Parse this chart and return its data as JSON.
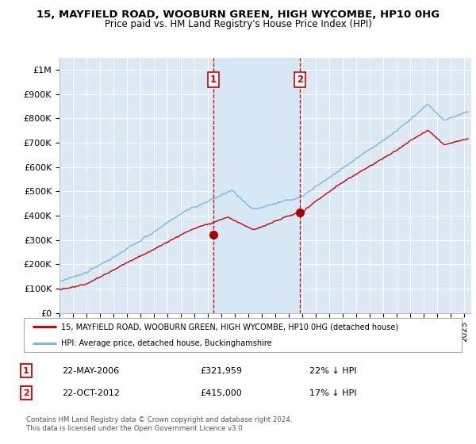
{
  "title": "15, MAYFIELD ROAD, WOOBURN GREEN, HIGH WYCOMBE, HP10 0HG",
  "subtitle": "Price paid vs. HM Land Registry's House Price Index (HPI)",
  "ylabel_ticks": [
    "£0",
    "£100K",
    "£200K",
    "£300K",
    "£400K",
    "£500K",
    "£600K",
    "£700K",
    "£800K",
    "£900K",
    "£1M"
  ],
  "ytick_values": [
    0,
    100000,
    200000,
    300000,
    400000,
    500000,
    600000,
    700000,
    800000,
    900000,
    1000000
  ],
  "ylim": [
    0,
    1050000
  ],
  "xlim_start": 1995.0,
  "xlim_end": 2025.5,
  "hpi_color": "#7ab8d9",
  "price_color": "#cc0000",
  "vline_color": "#cc0000",
  "shade_color": "#d6e8f5",
  "purchase1_x": 2006.38,
  "purchase1_y": 321959,
  "purchase2_x": 2012.8,
  "purchase2_y": 415000,
  "marker_color": "#aa0000",
  "marker_size": 7,
  "legend_house_label": "15, MAYFIELD ROAD, WOOBURN GREEN, HIGH WYCOMBE, HP10 0HG (detached house)",
  "legend_hpi_label": "HPI: Average price, detached house, Buckinghamshire",
  "annotation1_num": "1",
  "annotation1_date": "22-MAY-2006",
  "annotation1_price": "£321,959",
  "annotation1_hpi": "22% ↓ HPI",
  "annotation2_num": "2",
  "annotation2_date": "22-OCT-2012",
  "annotation2_price": "£415,000",
  "annotation2_hpi": "17% ↓ HPI",
  "footer": "Contains HM Land Registry data © Crown copyright and database right 2024.\nThis data is licensed under the Open Government Licence v3.0.",
  "background_color": "#ffffff",
  "plot_bg_color": "#dce9f5",
  "grid_color": "#ffffff"
}
